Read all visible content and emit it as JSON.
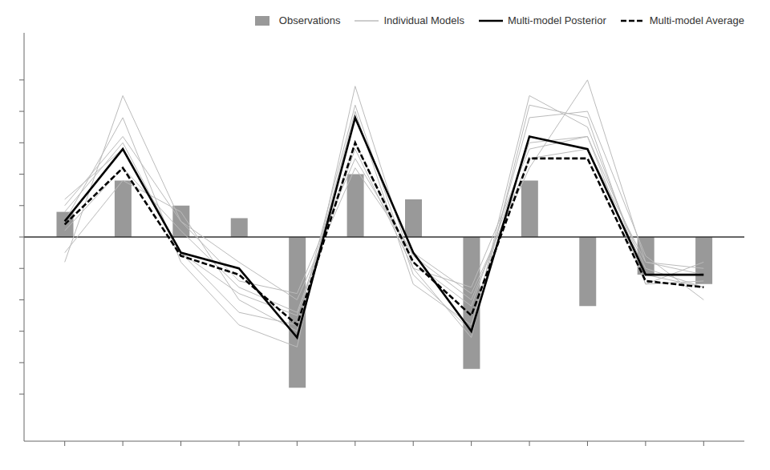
{
  "chart_data": {
    "type": "bar",
    "x": [
      0,
      1,
      2,
      3,
      4,
      5,
      6,
      7,
      8,
      9,
      10,
      11
    ],
    "xlim": [
      -0.7,
      11.7
    ],
    "xticks": [
      0,
      1,
      2,
      3,
      4,
      5,
      6,
      7,
      8,
      9,
      10,
      11
    ],
    "ylim": [
      -0.65,
      0.65
    ],
    "yticks": [
      -0.5,
      -0.4,
      -0.3,
      -0.2,
      -0.1,
      0.0,
      0.1,
      0.2,
      0.3,
      0.4,
      0.5
    ],
    "tick_labels": false,
    "grid": false,
    "legend": "upper right",
    "series": [
      {
        "name": "Observations",
        "type": "bar",
        "color": "#999999",
        "values": [
          0.08,
          0.18,
          0.1,
          0.06,
          -0.48,
          0.2,
          0.12,
          -0.42,
          0.18,
          -0.22,
          -0.12,
          -0.15
        ]
      },
      {
        "name": "Individual Models",
        "type": "line",
        "color": "#bbbbbb",
        "values": [
          0.1,
          0.32,
          0.05,
          -0.08,
          -0.2,
          0.22,
          -0.05,
          -0.18,
          0.22,
          0.5,
          -0.08,
          -0.1
        ]
      },
      {
        "name": "Individual Models",
        "type": "line",
        "color": "#bbbbbb",
        "values": [
          -0.05,
          0.18,
          0.08,
          -0.2,
          -0.3,
          0.4,
          -0.15,
          -0.28,
          0.38,
          0.4,
          -0.06,
          -0.2
        ]
      },
      {
        "name": "Individual Models",
        "type": "line",
        "color": "#bbbbbb",
        "values": [
          0.05,
          0.38,
          -0.08,
          -0.28,
          -0.35,
          0.48,
          -0.1,
          -0.32,
          0.42,
          0.38,
          -0.15,
          -0.14
        ]
      },
      {
        "name": "Individual Models",
        "type": "line",
        "color": "#bbbbbb",
        "values": [
          0.12,
          0.28,
          -0.05,
          -0.18,
          -0.25,
          0.3,
          -0.08,
          -0.22,
          0.3,
          0.32,
          -0.1,
          -0.16
        ]
      },
      {
        "name": "Individual Models",
        "type": "line",
        "color": "#bbbbbb",
        "values": [
          -0.08,
          0.45,
          0.05,
          -0.14,
          -0.18,
          0.25,
          -0.06,
          -0.2,
          0.25,
          0.28,
          -0.08,
          -0.12
        ]
      },
      {
        "name": "Individual Models",
        "type": "line",
        "color": "#bbbbbb",
        "values": [
          0.08,
          0.3,
          -0.05,
          -0.24,
          -0.28,
          0.42,
          -0.12,
          -0.3,
          0.45,
          0.35,
          -0.12,
          -0.16
        ]
      },
      {
        "name": "Individual Models",
        "type": "line",
        "color": "#bbbbbb",
        "values": [
          0.02,
          0.22,
          0.02,
          -0.16,
          -0.24,
          0.28,
          -0.1,
          -0.16,
          0.28,
          0.32,
          -0.15,
          -0.08
        ]
      },
      {
        "name": "Multi-model Posterior",
        "type": "line",
        "color": "#000000",
        "line_style": "solid",
        "values": [
          0.05,
          0.28,
          -0.05,
          -0.1,
          -0.32,
          0.38,
          -0.05,
          -0.3,
          0.32,
          0.28,
          -0.12,
          -0.12
        ]
      },
      {
        "name": "Multi-model Average",
        "type": "line",
        "color": "#000000",
        "line_style": "dashed",
        "values": [
          0.04,
          0.22,
          -0.06,
          -0.12,
          -0.28,
          0.3,
          -0.08,
          -0.25,
          0.25,
          0.25,
          -0.14,
          -0.16
        ]
      }
    ]
  }
}
